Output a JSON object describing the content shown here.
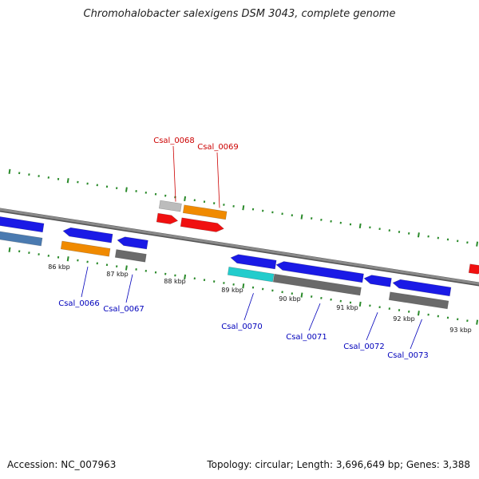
{
  "title": "Chromohalobacter salexigens DSM 3043, complete genome",
  "footer": {
    "accession": "Accession: NC_007963",
    "summary": "Topology: circular; Length: 3,696,649 bp; Genes: 3,388"
  },
  "colors": {
    "backbone": "#8a8a8a",
    "dots": "#2a8a2a",
    "gene_blue": "#1a1ae6",
    "gene_orange": "#f08a00",
    "gene_red": "#f01010",
    "gene_gray": "#6a6a6a",
    "gene_lightgray": "#bcbcbc",
    "gene_steel": "#4a7ab0",
    "gene_cyan": "#22cccc",
    "label_forward": "#cc0000",
    "label_reverse": "#0000bb"
  },
  "scale_labels": [
    "86 kbp",
    "87 kbp",
    "88 kbp",
    "89 kbp",
    "90 kbp",
    "91 kbp",
    "92 kbp",
    "93 kbp"
  ],
  "genes": [
    {
      "label": "",
      "strand": "reverse",
      "color": "gene_blue"
    },
    {
      "label": "",
      "strand": "reverse",
      "color": "gene_steel"
    },
    {
      "label": "Csal_0066",
      "strand": "reverse",
      "color": "gene_blue"
    },
    {
      "label": "",
      "strand": "reverse",
      "color": "gene_orange"
    },
    {
      "label": "Csal_0067",
      "strand": "reverse",
      "color": "gene_blue"
    },
    {
      "label": "",
      "strand": "reverse",
      "color": "gene_gray"
    },
    {
      "label": "Csal_0068",
      "strand": "forward",
      "color": "gene_red"
    },
    {
      "label": "",
      "strand": "forward",
      "color": "gene_lightgray"
    },
    {
      "label": "Csal_0069",
      "strand": "forward",
      "color": "gene_red"
    },
    {
      "label": "",
      "strand": "forward",
      "color": "gene_orange"
    },
    {
      "label": "Csal_0070",
      "strand": "reverse",
      "color": "gene_blue"
    },
    {
      "label": "",
      "strand": "reverse",
      "color": "gene_cyan"
    },
    {
      "label": "Csal_0071",
      "strand": "reverse",
      "color": "gene_blue"
    },
    {
      "label": "",
      "strand": "reverse",
      "color": "gene_gray"
    },
    {
      "label": "Csal_0072",
      "strand": "reverse",
      "color": "gene_blue"
    },
    {
      "label": "Csal_0073",
      "strand": "reverse",
      "color": "gene_blue"
    },
    {
      "label": "",
      "strand": "reverse",
      "color": "gene_gray"
    },
    {
      "label": "",
      "strand": "forward",
      "color": "gene_red"
    }
  ]
}
